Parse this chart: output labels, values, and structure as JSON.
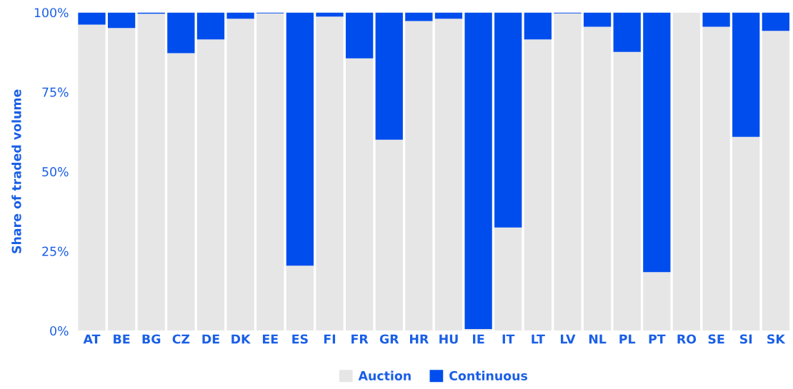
{
  "chart_data": {
    "type": "bar",
    "stacked": true,
    "ylabel": "Share of traded volume",
    "categories": [
      "AT",
      "BE",
      "BG",
      "CZ",
      "DE",
      "DK",
      "EE",
      "ES",
      "FI",
      "FR",
      "GR",
      "HR",
      "HU",
      "IE",
      "IT",
      "LT",
      "LV",
      "NL",
      "PL",
      "PT",
      "RO",
      "SE",
      "SI",
      "SK"
    ],
    "series": [
      {
        "name": "Auction",
        "color": "#e6e6e6",
        "values": [
          96.2,
          95.1,
          99.6,
          87.2,
          91.5,
          98.0,
          99.7,
          20.4,
          98.7,
          85.6,
          60.0,
          97.3,
          98.0,
          0.5,
          32.4,
          91.5,
          99.7,
          95.5,
          87.6,
          18.4,
          100,
          95.5,
          60.9,
          94.2
        ]
      },
      {
        "name": "Continuous",
        "color": "#004ded",
        "values": [
          3.8,
          4.9,
          0.4,
          12.8,
          8.5,
          2.0,
          0.3,
          79.6,
          1.3,
          14.4,
          40.0,
          2.7,
          2.0,
          99.5,
          67.6,
          8.5,
          0.3,
          4.5,
          12.4,
          81.6,
          0,
          4.5,
          39.1,
          5.8
        ]
      }
    ],
    "ylim": [
      0,
      100
    ],
    "yticks": [
      {
        "value": 0,
        "label": "0%"
      },
      {
        "value": 25,
        "label": "25%"
      },
      {
        "value": 50,
        "label": "50%"
      },
      {
        "value": 75,
        "label": "75%"
      },
      {
        "value": 100,
        "label": "100%"
      }
    ],
    "grid": false,
    "legend": "bottom"
  }
}
